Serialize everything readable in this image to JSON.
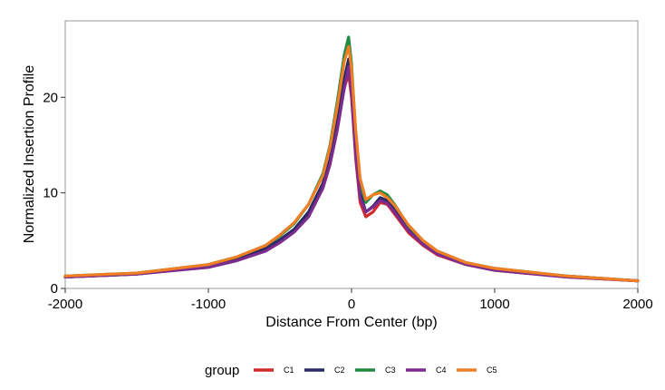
{
  "chart_data": {
    "type": "line",
    "xlabel": "Distance From Center (bp)",
    "ylabel": "Normalized Insertion Profile",
    "xlim": [
      -2000,
      2000
    ],
    "ylim": [
      0,
      28
    ],
    "xticks": [
      -2000,
      -1000,
      0,
      1000,
      2000
    ],
    "yticks": [
      0,
      10,
      20
    ],
    "legend_title": "group",
    "legend_position": "bottom",
    "grid": false,
    "series": [
      {
        "name": "C1",
        "color": "#D1282C",
        "x": [
          -2000,
          -1500,
          -1000,
          -800,
          -600,
          -500,
          -400,
          -300,
          -200,
          -150,
          -100,
          -50,
          -20,
          0,
          30,
          60,
          100,
          150,
          200,
          250,
          300,
          400,
          500,
          600,
          800,
          1000,
          1500,
          2000
        ],
        "y": [
          1.2,
          1.5,
          2.3,
          3.0,
          4.0,
          5.0,
          6.0,
          7.6,
          10.5,
          13.0,
          17.0,
          21.0,
          22.5,
          20.0,
          13.5,
          9.0,
          7.5,
          8.0,
          9.0,
          8.8,
          7.8,
          5.8,
          4.5,
          3.5,
          2.5,
          1.9,
          1.2,
          0.8
        ]
      },
      {
        "name": "C2",
        "color": "#2A2A62",
        "x": [
          -2000,
          -1500,
          -1000,
          -800,
          -600,
          -500,
          -400,
          -300,
          -200,
          -150,
          -100,
          -50,
          -20,
          0,
          30,
          60,
          100,
          150,
          200,
          250,
          300,
          400,
          500,
          600,
          800,
          1000,
          1500,
          2000
        ],
        "y": [
          1.2,
          1.5,
          2.3,
          3.1,
          4.2,
          5.1,
          6.2,
          8.0,
          11.0,
          13.5,
          17.5,
          22.0,
          24.0,
          21.0,
          14.5,
          10.0,
          8.0,
          8.6,
          9.5,
          9.2,
          8.3,
          6.2,
          4.8,
          3.8,
          2.6,
          2.0,
          1.3,
          0.8
        ]
      },
      {
        "name": "C3",
        "color": "#1F8A42",
        "x": [
          -2000,
          -1500,
          -1000,
          -800,
          -600,
          -500,
          -400,
          -300,
          -200,
          -150,
          -100,
          -50,
          -20,
          0,
          30,
          60,
          100,
          150,
          200,
          250,
          300,
          400,
          500,
          600,
          800,
          1000,
          1500,
          2000
        ],
        "y": [
          1.3,
          1.6,
          2.5,
          3.3,
          4.5,
          5.5,
          6.8,
          8.8,
          12.0,
          15.0,
          19.5,
          24.5,
          26.3,
          23.5,
          16.0,
          11.0,
          9.0,
          9.8,
          10.2,
          9.8,
          8.8,
          6.5,
          5.0,
          3.9,
          2.7,
          2.1,
          1.3,
          0.8
        ]
      },
      {
        "name": "C4",
        "color": "#7B2C8E",
        "x": [
          -2000,
          -1500,
          -1000,
          -800,
          -600,
          -500,
          -400,
          -300,
          -200,
          -150,
          -100,
          -50,
          -20,
          0,
          30,
          60,
          100,
          150,
          200,
          250,
          300,
          400,
          500,
          600,
          800,
          1000,
          1500,
          2000
        ],
        "y": [
          1.2,
          1.5,
          2.2,
          2.9,
          3.9,
          4.8,
          5.9,
          7.5,
          10.5,
          13.0,
          16.5,
          21.0,
          23.2,
          20.5,
          14.0,
          9.5,
          8.0,
          8.5,
          9.2,
          8.9,
          8.0,
          6.0,
          4.6,
          3.6,
          2.5,
          1.9,
          1.2,
          0.8
        ]
      },
      {
        "name": "C5",
        "color": "#F07E24",
        "x": [
          -2000,
          -1500,
          -1000,
          -800,
          -600,
          -500,
          -400,
          -300,
          -200,
          -150,
          -100,
          -50,
          -20,
          0,
          30,
          60,
          100,
          150,
          200,
          250,
          300,
          400,
          500,
          600,
          800,
          1000,
          1500,
          2000
        ],
        "y": [
          1.3,
          1.6,
          2.5,
          3.3,
          4.5,
          5.6,
          6.9,
          8.8,
          11.8,
          14.8,
          19.0,
          23.8,
          25.3,
          23.0,
          16.5,
          11.5,
          9.3,
          9.8,
          10.0,
          9.5,
          8.7,
          6.6,
          5.0,
          3.9,
          2.7,
          2.1,
          1.3,
          0.8
        ]
      }
    ]
  }
}
